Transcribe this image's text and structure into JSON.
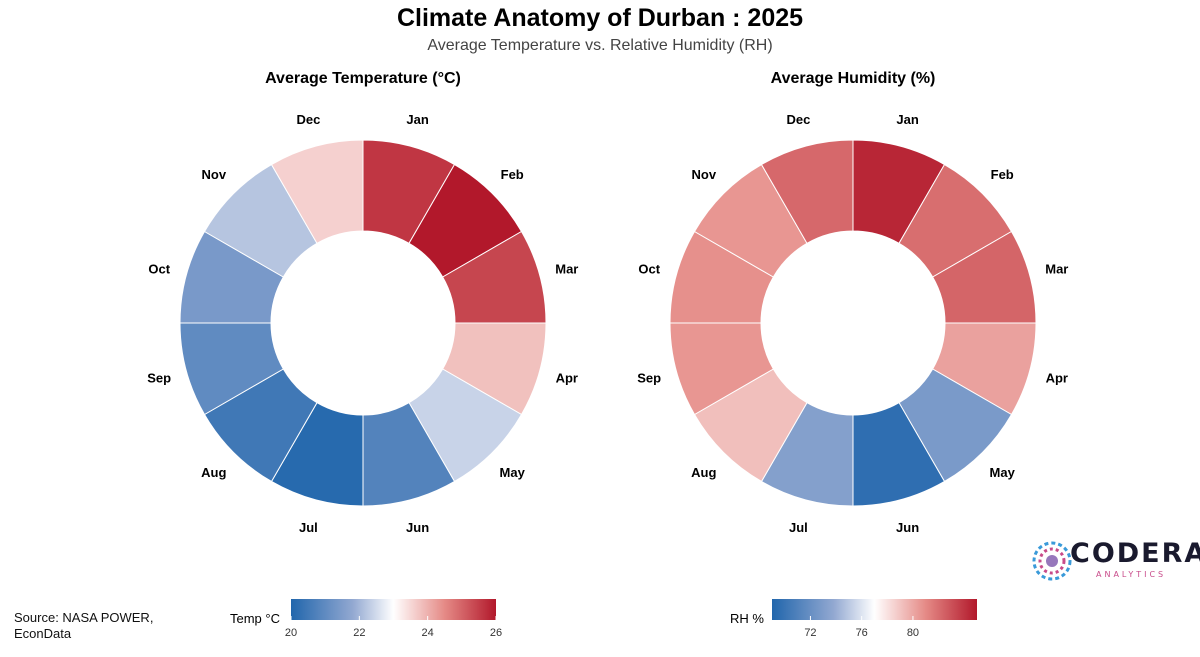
{
  "header": {
    "title": "Climate Anatomy of Durban : 2025",
    "subtitle": "Average Temperature vs. Relative Humidity (RH)"
  },
  "source": {
    "line1": "Source: NASA POWER,",
    "line2": "EconData"
  },
  "logo": {
    "word": "CODERA",
    "sub": "ANALYTICS"
  },
  "colors": {
    "low": "#2166ac",
    "mid": "#ffffff",
    "high": "#b2182b",
    "midtone_low": "#f7f7f7"
  },
  "chart_data": [
    {
      "type": "pie",
      "subtype": "donut",
      "title": "Average Temperature (°C)",
      "categories": [
        "Jan",
        "Feb",
        "Mar",
        "Apr",
        "May",
        "Jun",
        "Jul",
        "Aug",
        "Sep",
        "Oct",
        "Nov",
        "Dec"
      ],
      "values": [
        25.6,
        26.0,
        25.4,
        23.8,
        22.4,
        20.8,
        20.1,
        20.5,
        21.0,
        21.4,
        22.2,
        23.6
      ],
      "legend": {
        "title": "Temp °C",
        "min": 20,
        "max": 26,
        "ticks": [
          "20",
          "22",
          "24",
          "26"
        ]
      }
    },
    {
      "type": "pie",
      "subtype": "donut",
      "title": "Average Humidity (%)",
      "categories": [
        "Jan",
        "Feb",
        "Mar",
        "Apr",
        "May",
        "Jun",
        "Jul",
        "Aug",
        "Sep",
        "Oct",
        "Nov",
        "Dec"
      ],
      "values": [
        84.5,
        82.0,
        82.3,
        80.2,
        72.8,
        69.6,
        73.2,
        79.2,
        80.6,
        80.8,
        80.6,
        82.2
      ],
      "legend": {
        "title": "RH %",
        "min": 69,
        "max": 85,
        "ticks": [
          "72",
          "76",
          "80"
        ]
      }
    }
  ]
}
